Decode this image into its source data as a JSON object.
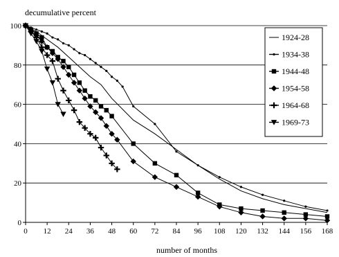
{
  "chart_data": {
    "type": "line",
    "ylabel": "decumulative percent",
    "xlabel": "number of months",
    "xlim": [
      0,
      168
    ],
    "ylim": [
      0,
      100
    ],
    "x_ticks": [
      0,
      12,
      24,
      36,
      48,
      60,
      72,
      84,
      96,
      108,
      120,
      132,
      144,
      156,
      168
    ],
    "y_ticks": [
      0,
      20,
      40,
      60,
      80,
      100
    ],
    "grid": "horizontal",
    "legend_position": "right",
    "series": [
      {
        "name": "1924-28",
        "marker": "none",
        "points": [
          [
            0,
            100
          ],
          [
            6,
            97
          ],
          [
            12,
            93
          ],
          [
            18,
            89
          ],
          [
            24,
            84
          ],
          [
            30,
            79
          ],
          [
            36,
            74
          ],
          [
            42,
            70
          ],
          [
            48,
            63
          ],
          [
            60,
            52
          ],
          [
            72,
            45
          ],
          [
            84,
            37
          ],
          [
            96,
            29
          ],
          [
            108,
            22
          ],
          [
            120,
            16
          ],
          [
            132,
            12
          ],
          [
            144,
            9
          ],
          [
            156,
            7
          ],
          [
            168,
            5
          ]
        ]
      },
      {
        "name": "1934-38",
        "marker": "dot",
        "points": [
          [
            0,
            100
          ],
          [
            3,
            99
          ],
          [
            6,
            98
          ],
          [
            9,
            97
          ],
          [
            12,
            96
          ],
          [
            15,
            94
          ],
          [
            18,
            93
          ],
          [
            21,
            91
          ],
          [
            24,
            90
          ],
          [
            27,
            88
          ],
          [
            30,
            86
          ],
          [
            33,
            85
          ],
          [
            36,
            83
          ],
          [
            39,
            81
          ],
          [
            42,
            79
          ],
          [
            45,
            77
          ],
          [
            48,
            74
          ],
          [
            51,
            72
          ],
          [
            54,
            69
          ],
          [
            60,
            59
          ],
          [
            72,
            50
          ],
          [
            84,
            36
          ],
          [
            96,
            29
          ],
          [
            108,
            23
          ],
          [
            120,
            18
          ],
          [
            132,
            14
          ],
          [
            144,
            11
          ],
          [
            156,
            8
          ],
          [
            168,
            6
          ]
        ]
      },
      {
        "name": "1944-48",
        "marker": "square",
        "points": [
          [
            0,
            100
          ],
          [
            3,
            98
          ],
          [
            6,
            96
          ],
          [
            9,
            94
          ],
          [
            12,
            89
          ],
          [
            15,
            87
          ],
          [
            18,
            84
          ],
          [
            21,
            82
          ],
          [
            24,
            79
          ],
          [
            27,
            75
          ],
          [
            30,
            71
          ],
          [
            33,
            67
          ],
          [
            36,
            64
          ],
          [
            39,
            62
          ],
          [
            42,
            59
          ],
          [
            45,
            57
          ],
          [
            48,
            54
          ],
          [
            60,
            40
          ],
          [
            72,
            30
          ],
          [
            84,
            24
          ],
          [
            96,
            15
          ],
          [
            108,
            9
          ],
          [
            120,
            7
          ],
          [
            132,
            6
          ],
          [
            144,
            5
          ],
          [
            156,
            4
          ],
          [
            168,
            3
          ]
        ]
      },
      {
        "name": "1954-58",
        "marker": "diamond",
        "points": [
          [
            0,
            100
          ],
          [
            3,
            97
          ],
          [
            6,
            95
          ],
          [
            9,
            92
          ],
          [
            12,
            89
          ],
          [
            15,
            86
          ],
          [
            18,
            83
          ],
          [
            21,
            79
          ],
          [
            24,
            75
          ],
          [
            27,
            71
          ],
          [
            30,
            67
          ],
          [
            33,
            63
          ],
          [
            36,
            59
          ],
          [
            39,
            56
          ],
          [
            42,
            53
          ],
          [
            45,
            49
          ],
          [
            48,
            45
          ],
          [
            51,
            42
          ],
          [
            60,
            31
          ],
          [
            72,
            23
          ],
          [
            84,
            18
          ],
          [
            96,
            13
          ],
          [
            108,
            8
          ],
          [
            120,
            5
          ],
          [
            132,
            3
          ],
          [
            144,
            2
          ],
          [
            156,
            2
          ],
          [
            168,
            1
          ]
        ]
      },
      {
        "name": "1964-68",
        "marker": "plus",
        "points": [
          [
            0,
            100
          ],
          [
            3,
            97
          ],
          [
            6,
            94
          ],
          [
            9,
            89
          ],
          [
            12,
            85
          ],
          [
            15,
            82
          ],
          [
            18,
            73
          ],
          [
            21,
            67
          ],
          [
            24,
            62
          ],
          [
            27,
            57
          ],
          [
            30,
            51
          ],
          [
            33,
            48
          ],
          [
            36,
            45
          ],
          [
            39,
            43
          ],
          [
            42,
            38
          ],
          [
            45,
            34
          ],
          [
            48,
            30
          ],
          [
            51,
            27
          ]
        ]
      },
      {
        "name": "1969-73",
        "marker": "triangle-down",
        "points": [
          [
            0,
            100
          ],
          [
            3,
            96
          ],
          [
            6,
            92
          ],
          [
            9,
            87
          ],
          [
            12,
            78
          ],
          [
            15,
            71
          ],
          [
            18,
            60
          ],
          [
            21,
            55
          ]
        ]
      }
    ]
  }
}
